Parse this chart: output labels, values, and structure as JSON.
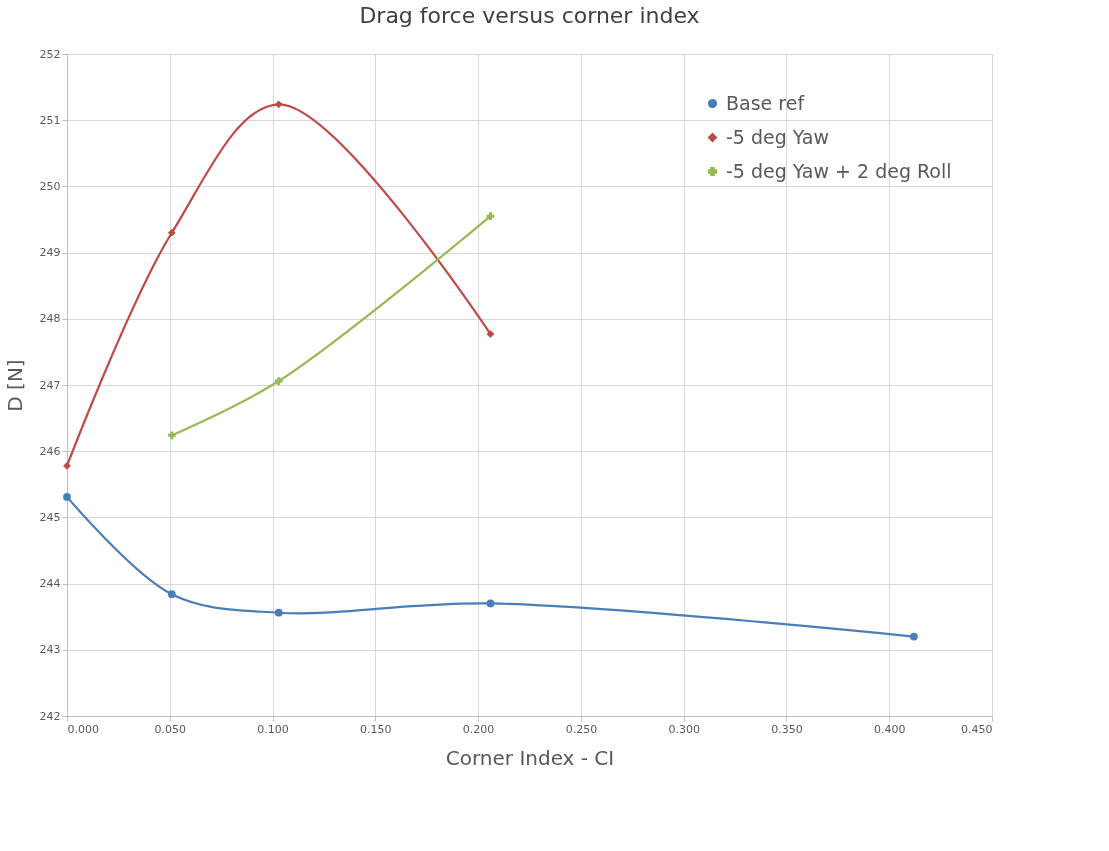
{
  "chart_data": {
    "type": "line",
    "title": "Drag force versus corner index",
    "xlabel": "Corner Index - CI",
    "ylabel": "D [N]",
    "xlim": [
      0,
      0.45
    ],
    "xticks": [
      {
        "value": 0,
        "label": "0.000"
      },
      {
        "value": 0.05,
        "label": "0.050"
      },
      {
        "value": 0.1,
        "label": "0.100"
      },
      {
        "value": 0.15,
        "label": "0.150"
      },
      {
        "value": 0.2,
        "label": "0.200"
      },
      {
        "value": 0.25,
        "label": "0.250"
      },
      {
        "value": 0.3,
        "label": "0.300"
      },
      {
        "value": 0.35,
        "label": "0.350"
      },
      {
        "value": 0.4,
        "label": "0.400"
      },
      {
        "value": 0.45,
        "label": "0.450"
      }
    ],
    "ylim": [
      242,
      252
    ],
    "yticks": [
      242,
      243,
      244,
      245,
      246,
      247,
      248,
      249,
      250,
      251,
      252
    ],
    "grid": true,
    "legend": "top right",
    "line_style": "solid",
    "series": [
      {
        "name": "Base ref",
        "color": "#4a7ebb",
        "marker": "circle",
        "x": [
          0,
          0.051,
          0.103,
          0.206,
          0.412
        ],
        "values": [
          245.31,
          243.84,
          243.56,
          243.7,
          243.2
        ]
      },
      {
        "name": "-5 deg Yaw",
        "color": "#be4b48",
        "marker": "diamond",
        "x": [
          0,
          0.051,
          0.103,
          0.206
        ],
        "values": [
          245.78,
          249.3,
          251.24,
          247.77
        ]
      },
      {
        "name": "-5 deg Yaw + 2 deg Roll",
        "color": "#98b954",
        "marker": "cross",
        "x": [
          0.051,
          0.103,
          0.206
        ],
        "values": [
          246.24,
          247.06,
          249.55
        ]
      }
    ]
  }
}
